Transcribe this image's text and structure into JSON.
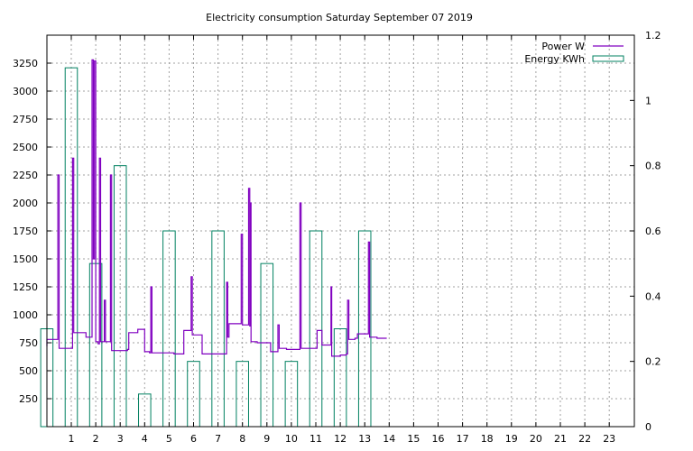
{
  "chart_data": {
    "type": "line",
    "title": "Electricity consumption Saturday September 07 2019",
    "xlabel": "",
    "ylabel": "",
    "y2label": "",
    "x_ticks": [
      1,
      2,
      3,
      4,
      5,
      6,
      7,
      8,
      9,
      10,
      11,
      12,
      13,
      14,
      15,
      16,
      17,
      18,
      19,
      20,
      21,
      22,
      23
    ],
    "xlim": [
      -0.5,
      24.0
    ],
    "ylim": [
      0,
      3500
    ],
    "y_ticks": [
      250,
      500,
      750,
      1000,
      1250,
      1500,
      1750,
      2000,
      2250,
      2500,
      2750,
      3000,
      3250
    ],
    "y2lim": [
      0,
      1.2
    ],
    "y2_ticks": [
      "0",
      "0.2",
      "0.4",
      "0.6",
      "0.8",
      "1",
      "1.2"
    ],
    "y2_tick_values": [
      0,
      0.2,
      0.4,
      0.6,
      0.8,
      1.0,
      1.2
    ],
    "grid": true,
    "legend_position": "top-right",
    "series": [
      {
        "name": "Power W",
        "color": "#8000c0",
        "style": "step-line",
        "axis": "left",
        "points": [
          [
            -0.5,
            720
          ],
          [
            -0.2,
            780
          ],
          [
            0.4,
            780
          ],
          [
            0.45,
            2250
          ],
          [
            0.5,
            700
          ],
          [
            0.8,
            700
          ],
          [
            1.0,
            700
          ],
          [
            1.05,
            2400
          ],
          [
            1.1,
            840
          ],
          [
            1.5,
            840
          ],
          [
            1.6,
            800
          ],
          [
            1.8,
            800
          ],
          [
            1.85,
            3280
          ],
          [
            1.9,
            1500
          ],
          [
            1.95,
            3270
          ],
          [
            2.0,
            760
          ],
          [
            2.1,
            740
          ],
          [
            2.15,
            2400
          ],
          [
            2.2,
            760
          ],
          [
            2.3,
            760
          ],
          [
            2.35,
            1130
          ],
          [
            2.4,
            760
          ],
          [
            2.55,
            760
          ],
          [
            2.6,
            2250
          ],
          [
            2.65,
            680
          ],
          [
            3.0,
            680
          ],
          [
            3.3,
            690
          ],
          [
            3.35,
            840
          ],
          [
            3.7,
            840
          ],
          [
            3.72,
            870
          ],
          [
            3.95,
            870
          ],
          [
            4.0,
            670
          ],
          [
            4.2,
            660
          ],
          [
            4.25,
            1250
          ],
          [
            4.3,
            660
          ],
          [
            4.5,
            660
          ],
          [
            4.9,
            660
          ],
          [
            5.2,
            650
          ],
          [
            5.5,
            650
          ],
          [
            5.6,
            860
          ],
          [
            5.85,
            860
          ],
          [
            5.9,
            1340
          ],
          [
            5.95,
            820
          ],
          [
            6.3,
            820
          ],
          [
            6.35,
            650
          ],
          [
            6.8,
            650
          ],
          [
            7.3,
            650
          ],
          [
            7.35,
            1290
          ],
          [
            7.4,
            800
          ],
          [
            7.45,
            920
          ],
          [
            7.9,
            920
          ],
          [
            7.95,
            1720
          ],
          [
            8.0,
            910
          ],
          [
            8.2,
            910
          ],
          [
            8.25,
            2130
          ],
          [
            8.3,
            900
          ],
          [
            8.32,
            2000
          ],
          [
            8.35,
            760
          ],
          [
            8.6,
            750
          ],
          [
            9.1,
            750
          ],
          [
            9.15,
            670
          ],
          [
            9.4,
            670
          ],
          [
            9.45,
            910
          ],
          [
            9.5,
            700
          ],
          [
            9.8,
            690
          ],
          [
            10.0,
            690
          ],
          [
            10.3,
            690
          ],
          [
            10.35,
            2000
          ],
          [
            10.4,
            700
          ],
          [
            10.9,
            700
          ],
          [
            11.0,
            700
          ],
          [
            11.05,
            860
          ],
          [
            11.2,
            860
          ],
          [
            11.25,
            730
          ],
          [
            11.6,
            730
          ],
          [
            11.62,
            1250
          ],
          [
            11.65,
            630
          ],
          [
            12.0,
            640
          ],
          [
            12.25,
            650
          ],
          [
            12.3,
            1130
          ],
          [
            12.35,
            780
          ],
          [
            12.6,
            790
          ],
          [
            12.7,
            830
          ],
          [
            13.1,
            830
          ],
          [
            13.15,
            1650
          ],
          [
            13.2,
            800
          ],
          [
            13.5,
            790
          ],
          [
            13.9,
            790
          ]
        ]
      },
      {
        "name": "Energy KWh",
        "color": "#008060",
        "style": "boxes",
        "axis": "right",
        "bars": [
          {
            "x": 0,
            "value": 0.3
          },
          {
            "x": 1,
            "value": 1.1
          },
          {
            "x": 2,
            "value": 0.5
          },
          {
            "x": 3,
            "value": 0.8
          },
          {
            "x": 4,
            "value": 0.1
          },
          {
            "x": 5,
            "value": 0.6
          },
          {
            "x": 6,
            "value": 0.2
          },
          {
            "x": 7,
            "value": 0.6
          },
          {
            "x": 8,
            "value": 0.2
          },
          {
            "x": 9,
            "value": 0.5
          },
          {
            "x": 10,
            "value": 0.2
          },
          {
            "x": 11,
            "value": 0.6
          },
          {
            "x": 12,
            "value": 0.3
          },
          {
            "x": 13,
            "value": 0.6
          }
        ],
        "bar_width": 0.5
      }
    ]
  }
}
